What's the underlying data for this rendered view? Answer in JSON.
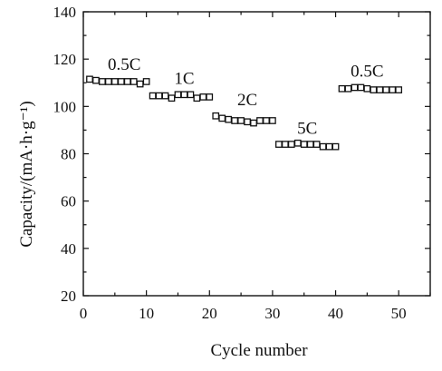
{
  "chart_data": {
    "type": "scatter",
    "title": "",
    "xlabel": "Cycle number",
    "ylabel": "Capacity/(mA·h·g⁻¹)",
    "xlim": [
      0,
      55
    ],
    "ylim": [
      20,
      140
    ],
    "xticks": [
      0,
      10,
      20,
      30,
      40,
      50
    ],
    "yticks": [
      20,
      40,
      60,
      80,
      100,
      120,
      140
    ],
    "grid": false,
    "legend": "none",
    "marker": "open-square",
    "color": "#111111",
    "series": [
      {
        "x": [
          1,
          2,
          3,
          4,
          5,
          6,
          7,
          8,
          9,
          10,
          11,
          12,
          13,
          14,
          15,
          16,
          17,
          18,
          19,
          20,
          21,
          22,
          23,
          24,
          25,
          26,
          27,
          28,
          29,
          30,
          31,
          32,
          33,
          34,
          35,
          36,
          37,
          38,
          39,
          40,
          41,
          42,
          43,
          44,
          45,
          46,
          47,
          48,
          49,
          50
        ],
        "y": [
          111.5,
          111,
          110.5,
          110.5,
          110.5,
          110.5,
          110.5,
          110.5,
          109.5,
          110.5,
          104.5,
          104.5,
          104.5,
          103.5,
          105,
          105,
          105,
          103.5,
          104,
          104,
          96,
          95,
          94.5,
          94,
          94,
          93.5,
          93,
          94,
          94,
          94,
          84,
          84,
          84,
          84.5,
          84,
          84,
          84,
          83,
          83,
          83,
          107.5,
          107.5,
          108,
          108,
          107.5,
          107,
          107,
          107,
          107,
          107
        ]
      }
    ],
    "annotations": [
      {
        "text": "0.5C",
        "x": 6.5,
        "y": 115.5
      },
      {
        "text": "1C",
        "x": 16,
        "y": 109.5
      },
      {
        "text": "2C",
        "x": 26,
        "y": 100.5
      },
      {
        "text": "5C",
        "x": 35.5,
        "y": 88.5
      },
      {
        "text": "0.5C",
        "x": 45,
        "y": 112.5
      }
    ]
  }
}
